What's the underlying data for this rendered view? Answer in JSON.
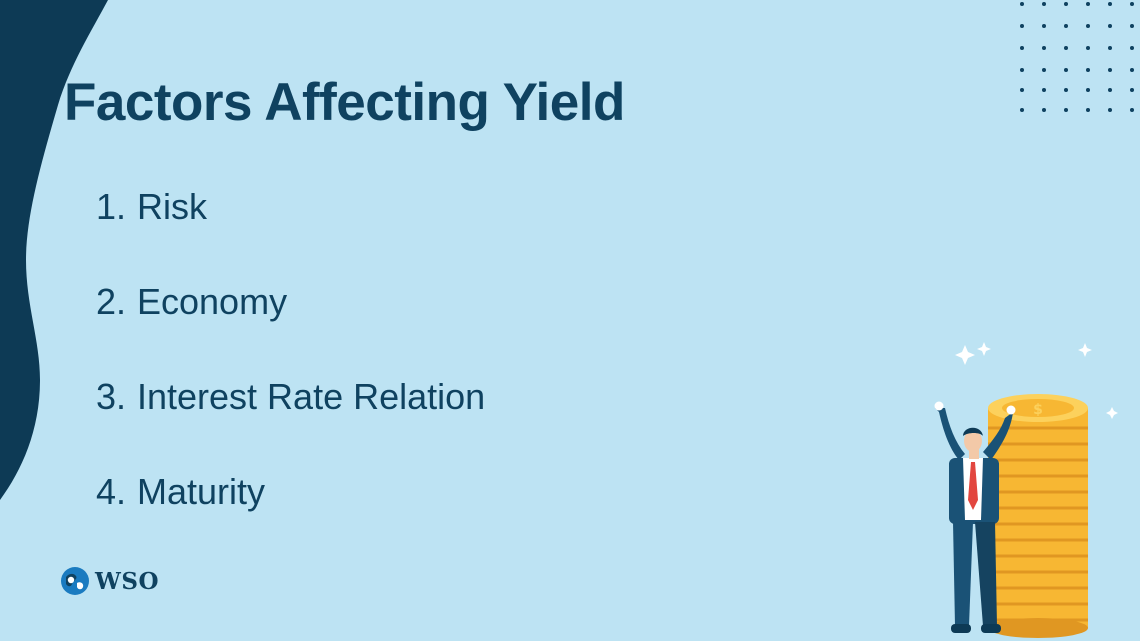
{
  "slide": {
    "title": "Factors Affecting Yield",
    "factors": [
      {
        "number": "1.",
        "label": "Risk"
      },
      {
        "number": "2.",
        "label": "Economy"
      },
      {
        "number": "3.",
        "label": "Interest Rate Relation"
      },
      {
        "number": "4.",
        "label": "Maturity"
      }
    ]
  },
  "branding": {
    "logo_text": "WSO",
    "logo_icon": "wso-globe-icon"
  },
  "illustration": {
    "subject": "businessman-celebrating-with-coin-stack",
    "coin_symbol": "$"
  },
  "colors": {
    "background": "#bde3f3",
    "navy": "#0f4260",
    "coin_gold": "#f7b733",
    "tie_red": "#e2463f"
  }
}
